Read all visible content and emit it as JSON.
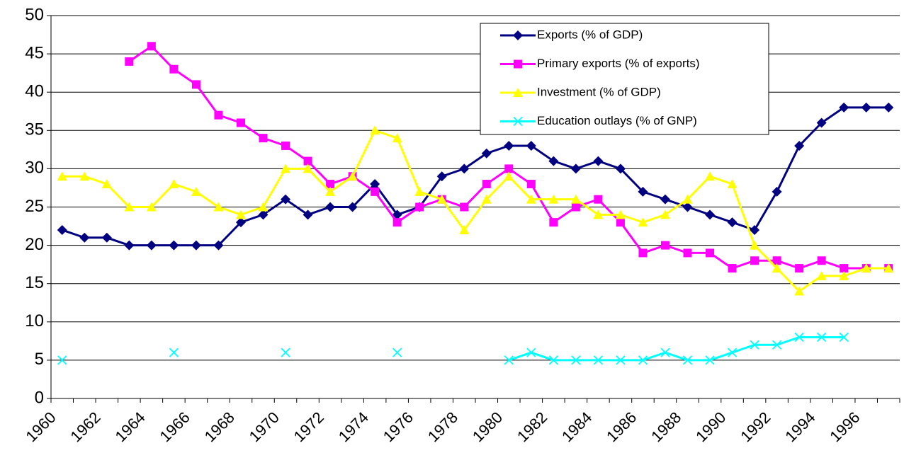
{
  "chart_data": {
    "type": "line",
    "categories": [
      "1960",
      null,
      "1962",
      null,
      "1964",
      null,
      "1966",
      null,
      "1968",
      null,
      "1970",
      null,
      "1972",
      null,
      "1974",
      null,
      "1976",
      null,
      "1978",
      null,
      "1980",
      null,
      "1982",
      null,
      "1984",
      null,
      "1986",
      null,
      "1988",
      null,
      "1990",
      null,
      "1992",
      null,
      "1994",
      null,
      "1996",
      null
    ],
    "series": [
      {
        "name": "Exports (% of GDP)",
        "color": "#000080",
        "marker": "diamond",
        "values": [
          22,
          21,
          21,
          20,
          20,
          20,
          20,
          20,
          23,
          24,
          26,
          24,
          25,
          25,
          28,
          24,
          25,
          29,
          30,
          32,
          33,
          33,
          31,
          30,
          31,
          30,
          27,
          26,
          25,
          24,
          23,
          22,
          27,
          33,
          36,
          38,
          38,
          38
        ]
      },
      {
        "name": "Primary exports (% of exports)",
        "color": "#ff00ff",
        "marker": "square",
        "values": [
          null,
          null,
          null,
          44,
          46,
          43,
          41,
          37,
          36,
          34,
          33,
          31,
          28,
          29,
          27,
          23,
          25,
          26,
          25,
          28,
          30,
          28,
          23,
          25,
          26,
          23,
          19,
          20,
          19,
          19,
          17,
          18,
          18,
          17,
          18,
          17,
          17,
          17
        ]
      },
      {
        "name": "Investment (% of GDP)",
        "color": "#ffff00",
        "marker": "triangle",
        "values": [
          29,
          29,
          28,
          25,
          25,
          28,
          27,
          25,
          24,
          25,
          30,
          30,
          27,
          29,
          35,
          34,
          27,
          26,
          22,
          26,
          29,
          26,
          26,
          26,
          24,
          24,
          23,
          24,
          26,
          29,
          28,
          20,
          17,
          14,
          16,
          16,
          17,
          17
        ]
      },
      {
        "name": "Education outlays (% of GNP)",
        "color": "#00ffff",
        "marker": "x",
        "values": [
          5,
          null,
          null,
          null,
          null,
          6,
          null,
          null,
          null,
          null,
          6,
          null,
          null,
          null,
          null,
          6,
          null,
          null,
          null,
          null,
          5,
          6,
          5,
          5,
          5,
          5,
          5,
          6,
          5,
          5,
          6,
          7,
          7,
          8,
          8,
          8,
          null,
          null
        ]
      }
    ],
    "ylim": [
      0,
      50
    ],
    "yticks": [
      0,
      5,
      10,
      15,
      20,
      25,
      30,
      35,
      40,
      45,
      50
    ],
    "grid": true,
    "legend": "top-right"
  }
}
